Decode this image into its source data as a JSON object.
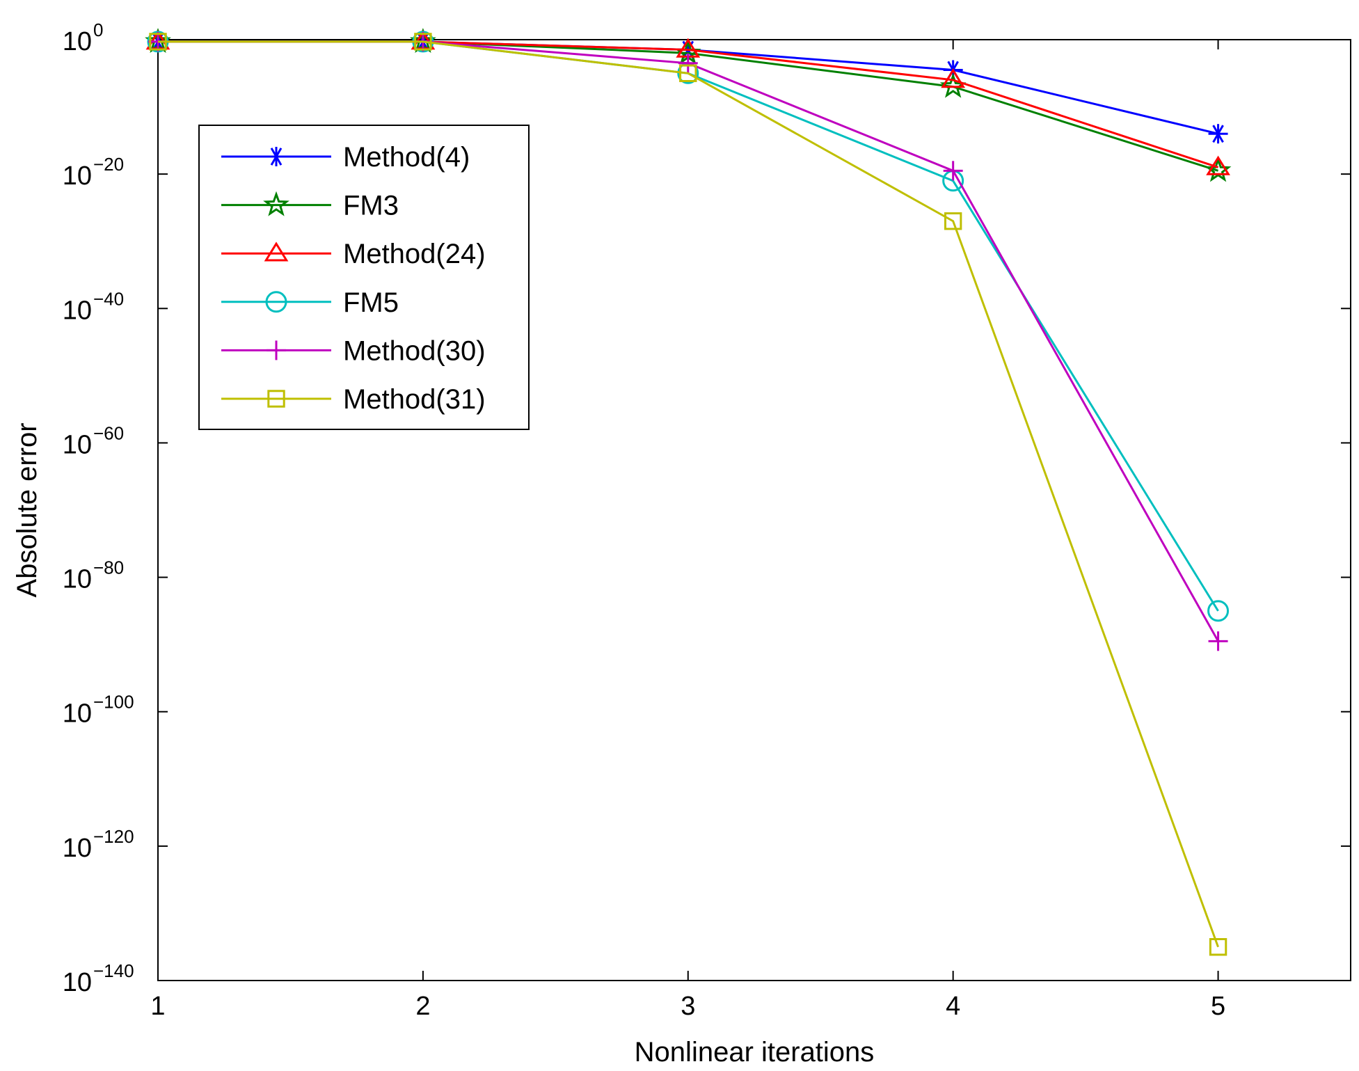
{
  "chart_data": {
    "type": "line",
    "title": "",
    "xlabel": "Nonlinear iterations",
    "ylabel": "Absolute error",
    "y_scale": "log",
    "xlim": [
      1,
      5.5
    ],
    "ylim_exponent": [
      -140,
      0
    ],
    "x_ticks": [
      1,
      2,
      3,
      4,
      5
    ],
    "y_tick_exponents": [
      0,
      -20,
      -40,
      -60,
      -80,
      -100,
      -120,
      -140
    ],
    "y_tick_base": "10",
    "grid": false,
    "legend_position": "upper-left",
    "x": [
      1,
      2,
      3,
      4,
      5
    ],
    "series": [
      {
        "name": "Method(4)",
        "color": "#0000ff",
        "marker": "asterisk",
        "log10_values": [
          -0.3,
          -0.3,
          -1.5,
          -4.5,
          -14
        ]
      },
      {
        "name": "FM3",
        "color": "#008000",
        "marker": "pentagram",
        "log10_values": [
          -0.3,
          -0.3,
          -2,
          -7,
          -19.5
        ]
      },
      {
        "name": "Method(24)",
        "color": "#ff0000",
        "marker": "triangle",
        "log10_values": [
          -0.3,
          -0.3,
          -1.5,
          -6,
          -19
        ]
      },
      {
        "name": "FM5",
        "color": "#00bfbf",
        "marker": "circle",
        "log10_values": [
          -0.3,
          -0.3,
          -5,
          -21,
          -85
        ]
      },
      {
        "name": "Method(30)",
        "color": "#bf00bf",
        "marker": "plus",
        "log10_values": [
          -0.3,
          -0.3,
          -3.5,
          -19.5,
          -89.5
        ]
      },
      {
        "name": "Method(31)",
        "color": "#bfbf00",
        "marker": "square",
        "log10_values": [
          -0.3,
          -0.3,
          -5,
          -27,
          -135
        ]
      }
    ]
  }
}
